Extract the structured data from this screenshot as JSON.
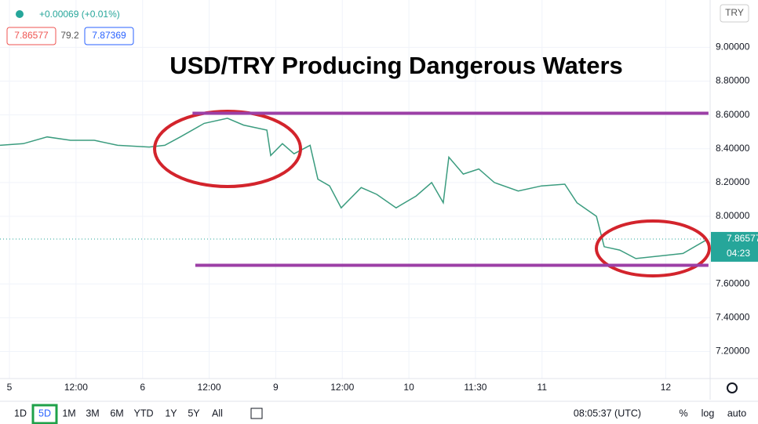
{
  "chart_data": {
    "type": "line",
    "title": "USD/TRY Producing Dangerous Waters",
    "x": [
      -1.7,
      2.5,
      6.8,
      11,
      15.3,
      19.5,
      25.2,
      28,
      30.8,
      35.1,
      39.3,
      42.2,
      46.4,
      47.1,
      49.2,
      51.3,
      54.2,
      55.6,
      57.7,
      59.8,
      63.4,
      66.2,
      69.7,
      73.3,
      76.1,
      78.2,
      79.2,
      81.8,
      84.6,
      87.4,
      91.7,
      95.9,
      100.1,
      102.3,
      105.8,
      107.2,
      110,
      112.9,
      118.5,
      121.4,
      125.6
    ],
    "values": [
      8.42,
      8.43,
      8.47,
      8.45,
      8.45,
      8.42,
      8.41,
      8.42,
      8.47,
      8.55,
      8.58,
      8.54,
      8.51,
      8.36,
      8.43,
      8.37,
      8.42,
      8.22,
      8.18,
      8.05,
      8.17,
      8.13,
      8.05,
      8.12,
      8.2,
      8.08,
      8.35,
      8.25,
      8.28,
      8.2,
      8.15,
      8.18,
      8.19,
      8.08,
      8.0,
      7.82,
      7.8,
      7.75,
      7.77,
      7.78,
      7.86
    ],
    "color": "#3b9c7f",
    "xlim": [
      -1.7,
      126.3
    ],
    "xticks": [
      {
        "value": 0,
        "label": "5"
      },
      {
        "value": 12,
        "label": "12:00"
      },
      {
        "value": 24,
        "label": "6"
      },
      {
        "value": 36,
        "label": "12:00"
      },
      {
        "value": 48,
        "label": "9"
      },
      {
        "value": 60,
        "label": "12:00"
      },
      {
        "value": 72,
        "label": "10"
      },
      {
        "value": 84,
        "label": "11:30"
      },
      {
        "value": 96,
        "label": "11"
      },
      {
        "value": 118.3,
        "label": "12"
      }
    ],
    "ylim": [
      7.04,
      9.28
    ],
    "yticks": [
      {
        "value": 7.2,
        "label": "7.20000"
      },
      {
        "value": 7.4,
        "label": "7.40000"
      },
      {
        "value": 7.6,
        "label": "7.60000"
      },
      {
        "value": 8.0,
        "label": "8.00000"
      },
      {
        "value": 8.2,
        "label": "8.20000"
      },
      {
        "value": 8.4,
        "label": "8.40000"
      },
      {
        "value": 8.6,
        "label": "8.60000"
      },
      {
        "value": 8.8,
        "label": "8.80000"
      },
      {
        "value": 9.0,
        "label": "9.00000"
      }
    ],
    "grid": true,
    "hlines": [
      {
        "value": 8.61,
        "x": [
          33,
          126
        ],
        "color": "#9c3fa6"
      },
      {
        "value": 7.71,
        "x": [
          33.5,
          126
        ],
        "color": "#9c3fa6"
      }
    ],
    "last_price": 7.86577,
    "countdown": "04:23",
    "currency": "TRY"
  },
  "ui": {
    "change": "+0.00069 (+0.01%)",
    "bid": "7.86577",
    "spread": "79.2",
    "ask": "7.87369",
    "ranges": [
      "1D",
      "5D",
      "1M",
      "3M",
      "6M",
      "YTD",
      "1Y",
      "5Y",
      "All"
    ],
    "clock": "08:05:37 (UTC)",
    "percent": "%",
    "log": "log",
    "auto": "auto"
  }
}
